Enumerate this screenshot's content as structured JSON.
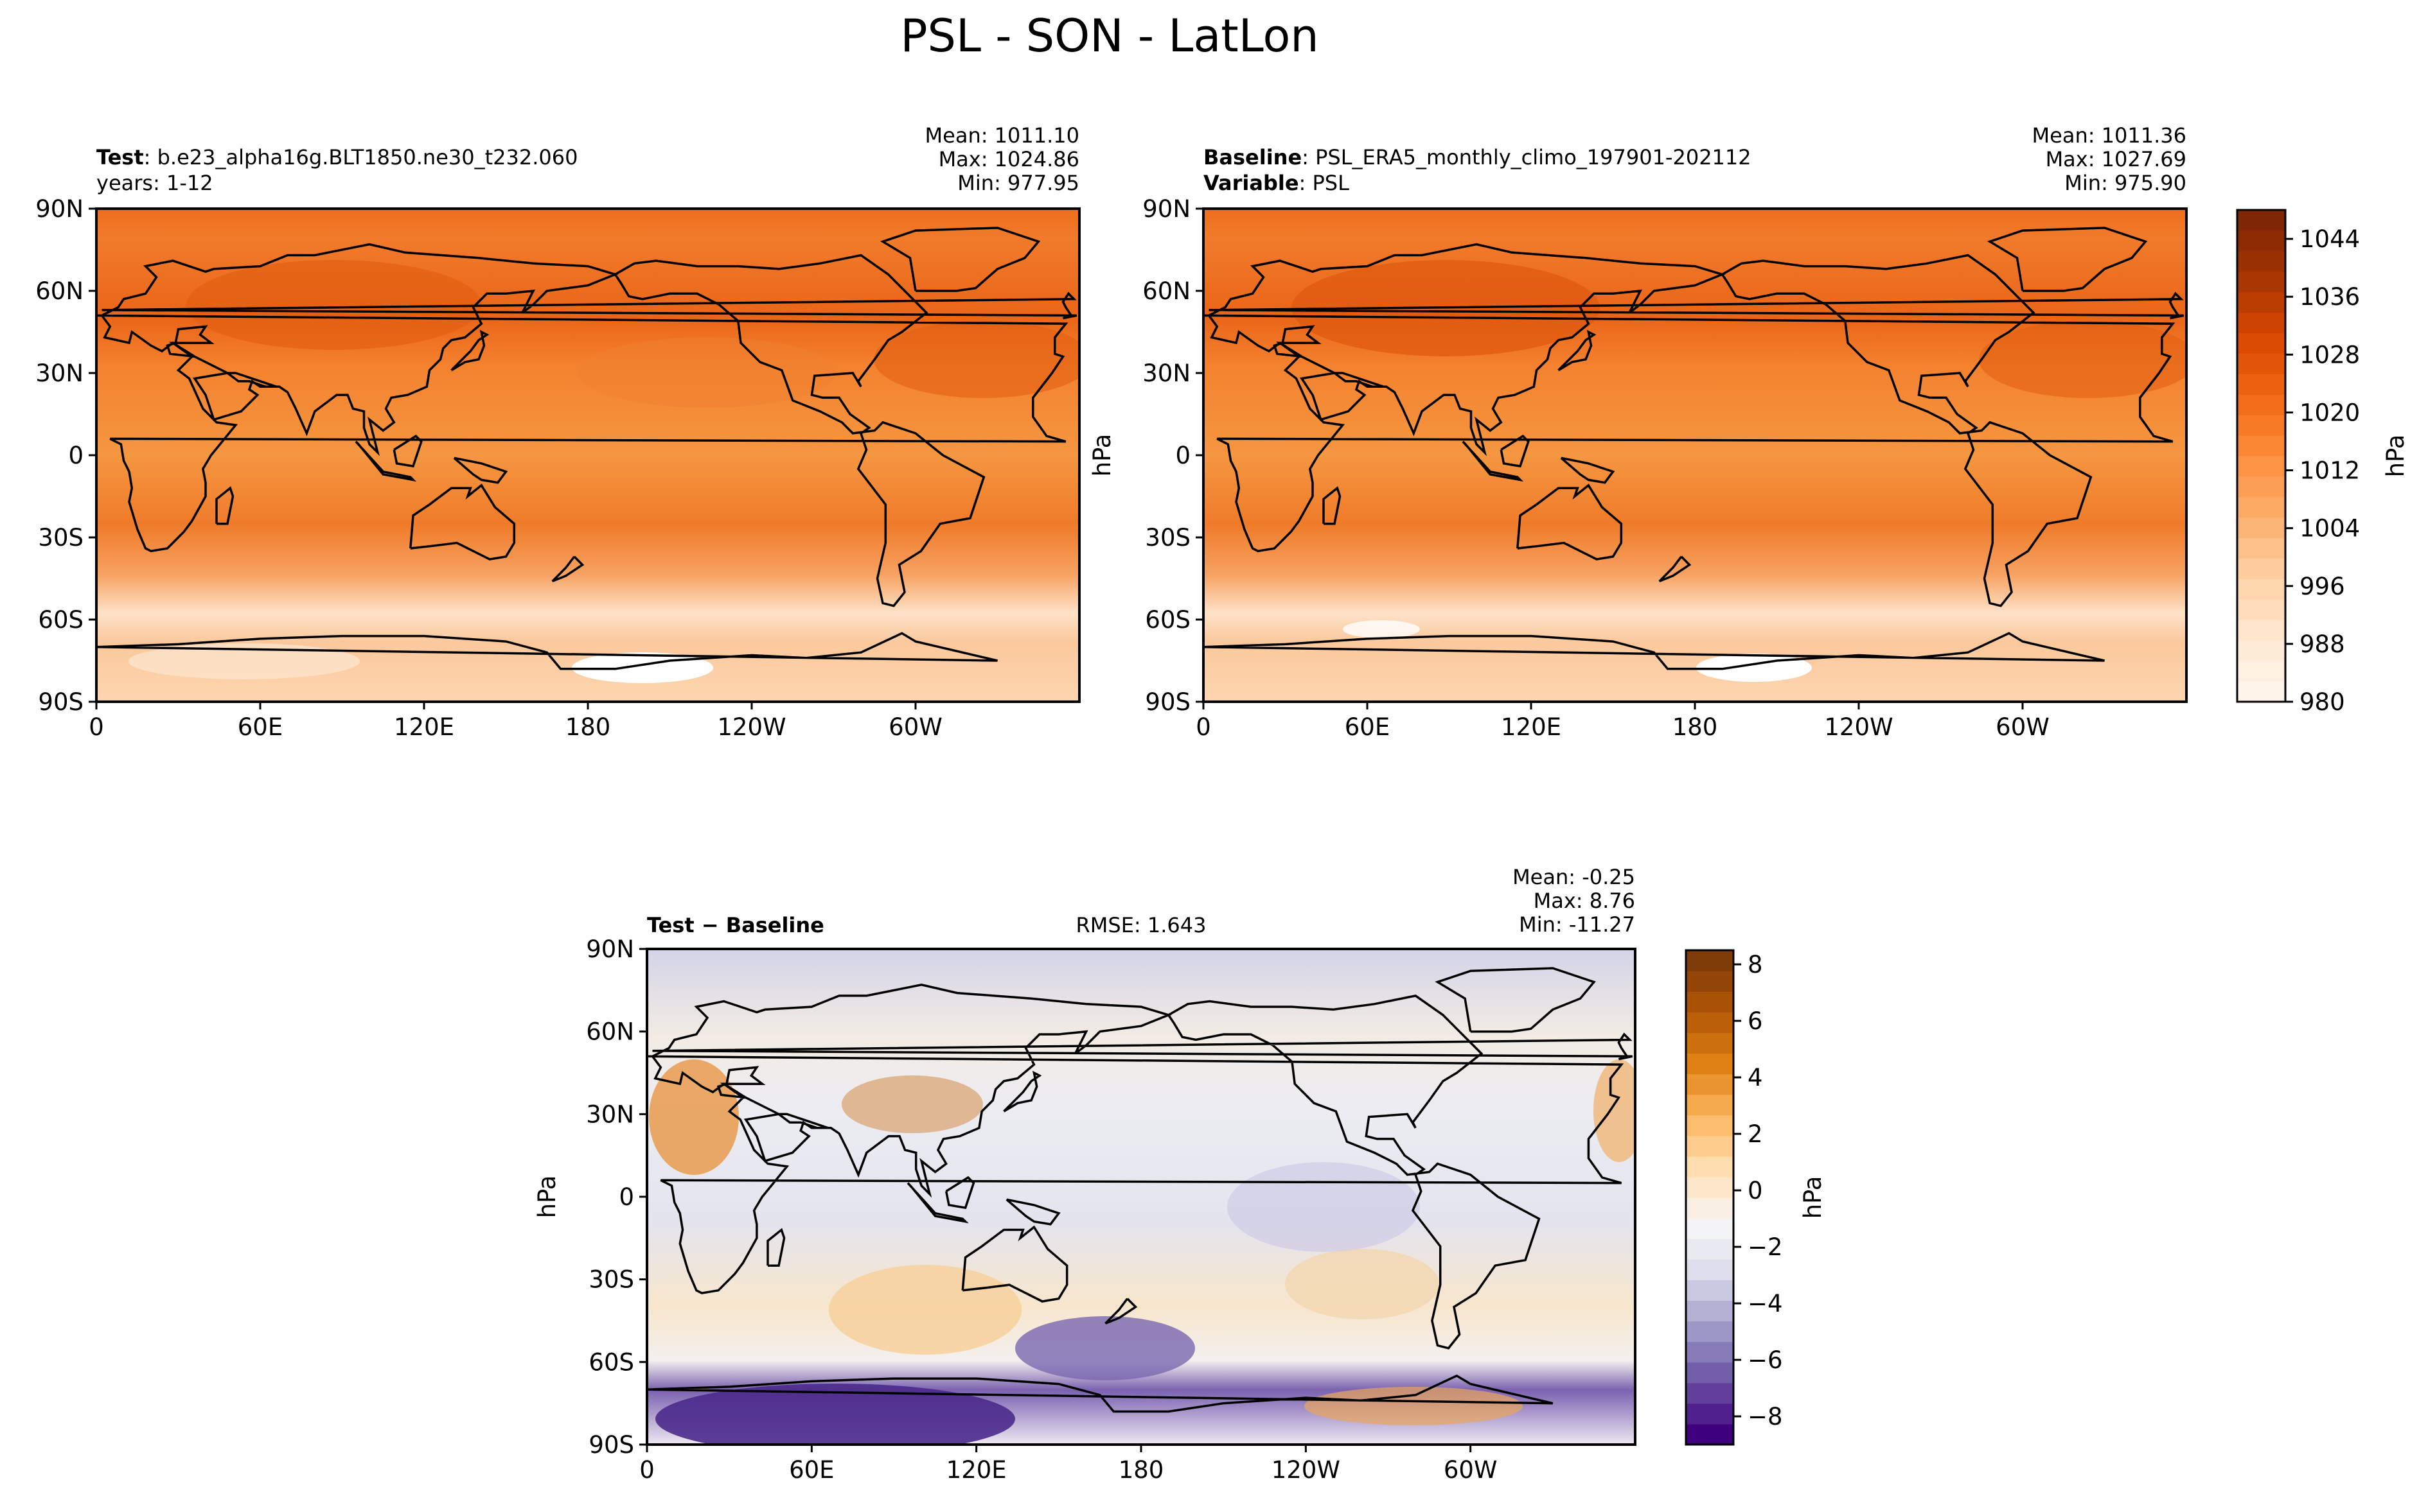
{
  "figure": {
    "title": "PSL - SON - LatLon"
  },
  "axis_ticks": {
    "lat": [
      "90N",
      "60N",
      "30N",
      "0",
      "30S",
      "60S",
      "90S"
    ],
    "lon": [
      "0",
      "60E",
      "120E",
      "180",
      "120W",
      "60W"
    ]
  },
  "panels": {
    "test": {
      "label_bold": "Test",
      "label_text": ": b.e23_alpha16g.BLT1850.ne30_t232.060",
      "line2_text": "years: 1-12",
      "mean": "Mean: 1011.10",
      "max": "Max: 1024.86",
      "min": "Min: 977.95"
    },
    "baseline": {
      "label_bold": "Baseline",
      "label_text": ": PSL_ERA5_monthly_climo_197901-202112",
      "line2_bold": "Variable",
      "line2_text": ": PSL",
      "ylabel": "hPa",
      "mean": "Mean: 1011.36",
      "max": "Max: 1027.69",
      "min": "Min: 975.90"
    },
    "diff": {
      "label": "Test − Baseline",
      "rmse": "RMSE: 1.643",
      "ylabel": "hPa",
      "mean": "Mean: -0.25",
      "max": "Max:  8.76",
      "min": "Min: -11.27"
    }
  },
  "colorbars": {
    "abs": {
      "label": "hPa",
      "ticks": [
        "980",
        "988",
        "996",
        "1004",
        "1012",
        "1020",
        "1028",
        "1036",
        "1044"
      ],
      "range": [
        980,
        1048
      ],
      "colors": [
        "#fff5eb",
        "#fee6ce",
        "#fdd0a2",
        "#fdae6b",
        "#fd8d3c",
        "#f16913",
        "#d94801",
        "#a63603",
        "#7f2704"
      ]
    },
    "diff": {
      "label": "hPa",
      "ticks": [
        "−8",
        "−6",
        "−4",
        "−2",
        "0",
        "2",
        "4",
        "6",
        "8"
      ],
      "range": [
        -9,
        8.5
      ],
      "colors": [
        "#3f007d",
        "#6a51a3",
        "#9e9ac8",
        "#dadaeb",
        "#f7f7f7",
        "#fee0b6",
        "#fdb863",
        "#e08214",
        "#b35806",
        "#7f3b08"
      ]
    }
  },
  "chart_data": [
    {
      "type": "heatmap",
      "panel": "Test",
      "variable": "PSL",
      "units": "hPa",
      "xlim": [
        0,
        360
      ],
      "ylim": [
        -90,
        90
      ],
      "stats": {
        "mean": 1011.1,
        "max": 1024.86,
        "min": 977.95
      }
    },
    {
      "type": "heatmap",
      "panel": "Baseline",
      "variable": "PSL",
      "units": "hPa",
      "xlim": [
        0,
        360
      ],
      "ylim": [
        -90,
        90
      ],
      "stats": {
        "mean": 1011.36,
        "max": 1027.69,
        "min": 975.9
      }
    },
    {
      "type": "heatmap",
      "panel": "Test − Baseline",
      "variable": "PSL",
      "units": "hPa",
      "xlim": [
        0,
        360
      ],
      "ylim": [
        -90,
        90
      ],
      "stats": {
        "mean": -0.25,
        "max": 8.76,
        "min": -11.27,
        "rmse": 1.643
      }
    }
  ]
}
